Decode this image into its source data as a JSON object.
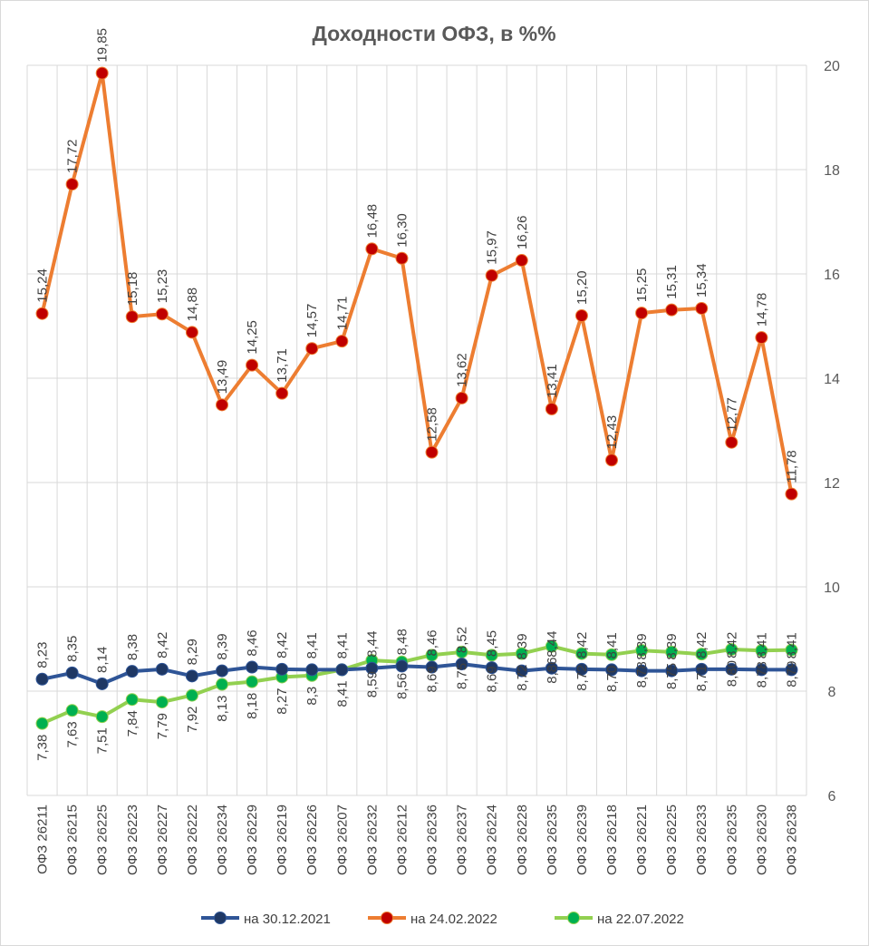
{
  "chart_data": {
    "type": "line",
    "title": "Доходности ОФЗ, в %%",
    "ylim": [
      6,
      20
    ],
    "yticks": [
      "6",
      "8",
      "10",
      "12",
      "14",
      "16",
      "18",
      "20"
    ],
    "y_axis_side": "right",
    "grid": "vertical and horizontal",
    "legend_position": "bottom",
    "categories": [
      "ОФЗ 26211",
      "ОФЗ 26215",
      "ОФЗ 26225",
      "ОФЗ 26223",
      "ОФЗ 26227",
      "ОФЗ 26222",
      "ОФЗ 26234",
      "ОФЗ 26229",
      "ОФЗ 26219",
      "ОФЗ 26226",
      "ОФЗ 26207",
      "ОФЗ 26232",
      "ОФЗ 26212",
      "ОФЗ 26236",
      "ОФЗ 26237",
      "ОФЗ 26224",
      "ОФЗ 26228",
      "ОФЗ 26235",
      "ОФЗ 26239",
      "ОФЗ 26218",
      "ОФЗ 26221",
      "ОФЗ 26225",
      "ОФЗ 26233",
      "ОФЗ 26235",
      "ОФЗ 26230",
      "ОФЗ 26238"
    ],
    "series": [
      {
        "name": "на 30.12.2021",
        "line_color": "#2f5597",
        "marker_color": "#1f3864",
        "values": [
          8.23,
          8.35,
          8.14,
          8.38,
          8.42,
          8.29,
          8.39,
          8.46,
          8.42,
          8.41,
          8.41,
          8.44,
          8.48,
          8.46,
          8.52,
          8.45,
          8.39,
          8.44,
          8.42,
          8.41,
          8.39,
          8.39,
          8.42,
          8.42,
          8.41,
          8.41
        ],
        "labels": [
          "8,23",
          "8,35",
          "8,14",
          "8,38",
          "8,42",
          "8,29",
          "8,39",
          "8,46",
          "8,42",
          "8,41",
          "8,41",
          "8,44",
          "8,48",
          "8,46",
          "8,52",
          "8,45",
          "8,39",
          "8,44",
          "8,42",
          "8,41",
          "8,39",
          "8,39",
          "8,42",
          "8,42",
          "8,41",
          "8,41"
        ]
      },
      {
        "name": "на 24.02.2022",
        "line_color": "#ed7d31",
        "marker_color": "#c00000",
        "values": [
          15.24,
          17.72,
          19.85,
          15.18,
          15.23,
          14.88,
          13.49,
          14.25,
          13.71,
          14.57,
          14.71,
          16.48,
          16.3,
          12.58,
          13.62,
          15.97,
          16.26,
          13.41,
          15.2,
          12.43,
          15.25,
          15.31,
          15.34,
          12.77,
          14.78,
          11.78
        ],
        "labels": [
          "15,24",
          "17,72",
          "19,85",
          "15,18",
          "15,23",
          "14,88",
          "13,49",
          "14,25",
          "13,71",
          "14,57",
          "14,71",
          "16,48",
          "16,30",
          "12,58",
          "13,62",
          "15,97",
          "16,26",
          "13,41",
          "15,20",
          "12,43",
          "15,25",
          "15,31",
          "15,34",
          "12,77",
          "14,78",
          "11,78"
        ]
      },
      {
        "name": "на 22.07.2022",
        "line_color": "#92d050",
        "marker_color": "#00b050",
        "values": [
          7.38,
          7.63,
          7.51,
          7.84,
          7.79,
          7.92,
          8.13,
          8.18,
          8.27,
          8.3,
          8.41,
          8.59,
          8.56,
          8.69,
          8.75,
          8.69,
          8.72,
          8.86,
          8.72,
          8.7,
          8.78,
          8.75,
          8.71,
          8.8,
          8.78,
          8.79
        ],
        "labels": [
          "7,38",
          "7,63",
          "7,51",
          "7,84",
          "7,79",
          "7,92",
          "8,13",
          "8,18",
          "8,27",
          "8,3",
          "8,41",
          "8,59",
          "8,56",
          "8,69",
          "8,75",
          "8,69",
          "8,72",
          "8,86",
          "8,72",
          "8,70",
          "8,78",
          "8,75",
          "8,71",
          "8,80",
          "8,78",
          "8,79"
        ]
      }
    ]
  }
}
